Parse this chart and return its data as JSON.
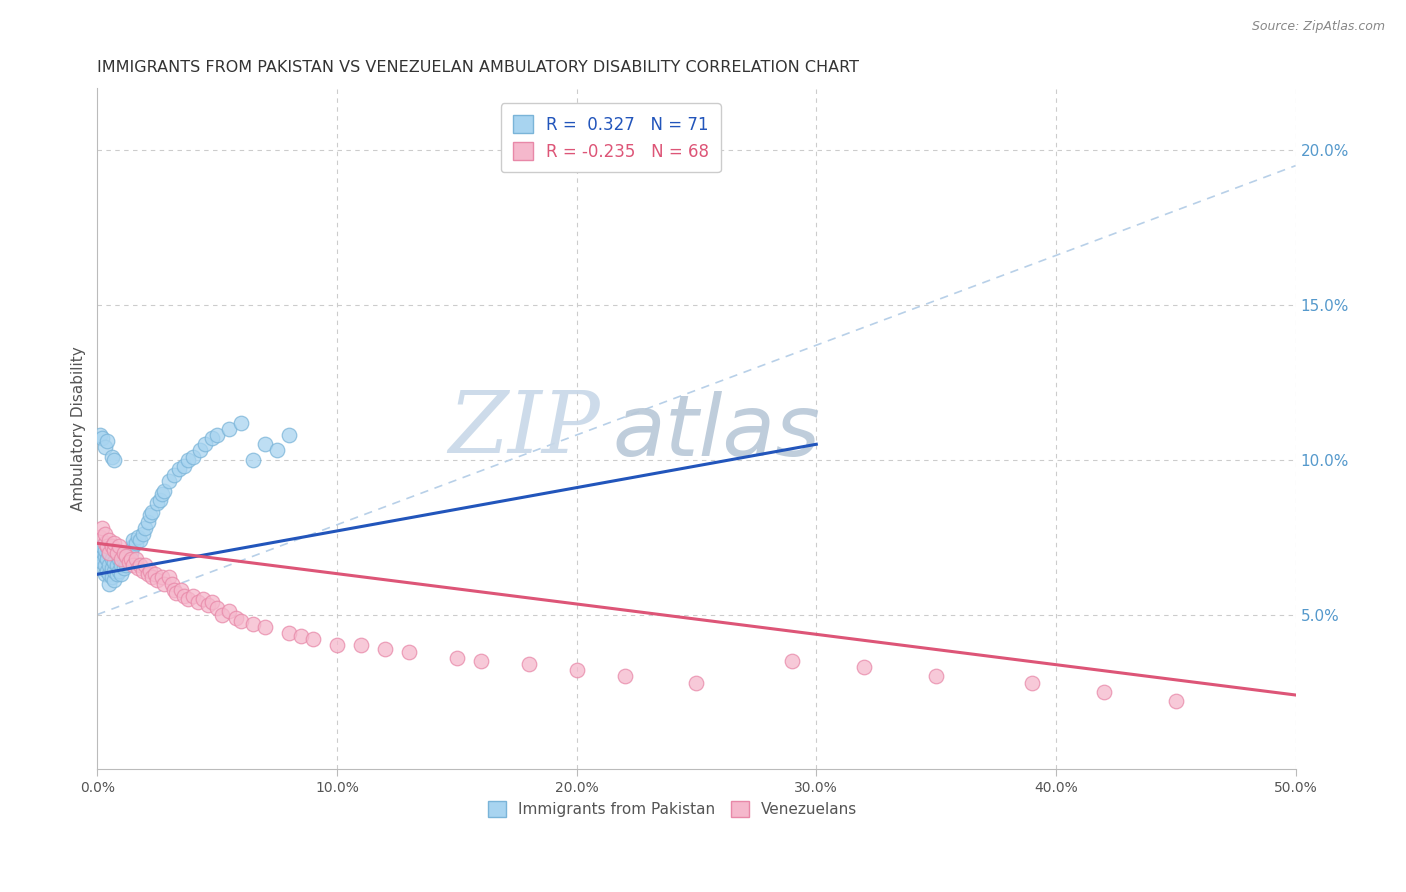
{
  "title": "IMMIGRANTS FROM PAKISTAN VS VENEZUELAN AMBULATORY DISABILITY CORRELATION CHART",
  "source": "Source: ZipAtlas.com",
  "ylabel": "Ambulatory Disability",
  "xlim": [
    0.0,
    0.5
  ],
  "ylim": [
    0.0,
    0.22
  ],
  "xticks": [
    0.0,
    0.1,
    0.2,
    0.3,
    0.4,
    0.5
  ],
  "xtick_labels": [
    "0.0%",
    "10.0%",
    "20.0%",
    "30.0%",
    "40.0%",
    "50.0%"
  ],
  "yticks_right": [
    0.0,
    0.05,
    0.1,
    0.15,
    0.2
  ],
  "ytick_labels_right": [
    "",
    "5.0%",
    "10.0%",
    "15.0%",
    "20.0%"
  ],
  "blue_scatter_x": [
    0.001,
    0.001,
    0.002,
    0.002,
    0.002,
    0.003,
    0.003,
    0.003,
    0.003,
    0.004,
    0.004,
    0.004,
    0.005,
    0.005,
    0.005,
    0.005,
    0.006,
    0.006,
    0.006,
    0.007,
    0.007,
    0.007,
    0.008,
    0.008,
    0.009,
    0.009,
    0.01,
    0.01,
    0.01,
    0.011,
    0.011,
    0.012,
    0.012,
    0.013,
    0.014,
    0.015,
    0.015,
    0.016,
    0.017,
    0.018,
    0.019,
    0.02,
    0.021,
    0.022,
    0.023,
    0.025,
    0.026,
    0.027,
    0.028,
    0.03,
    0.032,
    0.034,
    0.036,
    0.038,
    0.04,
    0.043,
    0.045,
    0.048,
    0.05,
    0.055,
    0.06,
    0.065,
    0.07,
    0.075,
    0.08,
    0.001,
    0.002,
    0.003,
    0.004,
    0.006,
    0.007
  ],
  "blue_scatter_y": [
    0.068,
    0.07,
    0.065,
    0.067,
    0.072,
    0.063,
    0.066,
    0.069,
    0.071,
    0.064,
    0.068,
    0.072,
    0.06,
    0.063,
    0.066,
    0.07,
    0.062,
    0.065,
    0.068,
    0.061,
    0.064,
    0.067,
    0.063,
    0.066,
    0.064,
    0.068,
    0.063,
    0.066,
    0.07,
    0.065,
    0.068,
    0.066,
    0.07,
    0.068,
    0.07,
    0.072,
    0.074,
    0.073,
    0.075,
    0.074,
    0.076,
    0.078,
    0.08,
    0.082,
    0.083,
    0.086,
    0.087,
    0.089,
    0.09,
    0.093,
    0.095,
    0.097,
    0.098,
    0.1,
    0.101,
    0.103,
    0.105,
    0.107,
    0.108,
    0.11,
    0.112,
    0.1,
    0.105,
    0.103,
    0.108,
    0.108,
    0.107,
    0.104,
    0.106,
    0.101,
    0.1
  ],
  "pink_scatter_x": [
    0.001,
    0.002,
    0.003,
    0.003,
    0.004,
    0.005,
    0.005,
    0.006,
    0.007,
    0.007,
    0.008,
    0.009,
    0.01,
    0.011,
    0.012,
    0.013,
    0.014,
    0.015,
    0.016,
    0.017,
    0.018,
    0.019,
    0.02,
    0.021,
    0.022,
    0.023,
    0.024,
    0.025,
    0.027,
    0.028,
    0.03,
    0.031,
    0.032,
    0.033,
    0.035,
    0.036,
    0.038,
    0.04,
    0.042,
    0.044,
    0.046,
    0.048,
    0.05,
    0.052,
    0.055,
    0.058,
    0.06,
    0.065,
    0.07,
    0.08,
    0.085,
    0.09,
    0.1,
    0.11,
    0.12,
    0.13,
    0.15,
    0.16,
    0.18,
    0.2,
    0.22,
    0.25,
    0.29,
    0.32,
    0.35,
    0.39,
    0.42,
    0.45
  ],
  "pink_scatter_y": [
    0.075,
    0.078,
    0.073,
    0.076,
    0.072,
    0.074,
    0.07,
    0.072,
    0.071,
    0.073,
    0.07,
    0.072,
    0.068,
    0.07,
    0.069,
    0.067,
    0.068,
    0.066,
    0.068,
    0.065,
    0.066,
    0.064,
    0.066,
    0.063,
    0.064,
    0.062,
    0.063,
    0.061,
    0.062,
    0.06,
    0.062,
    0.06,
    0.058,
    0.057,
    0.058,
    0.056,
    0.055,
    0.056,
    0.054,
    0.055,
    0.053,
    0.054,
    0.052,
    0.05,
    0.051,
    0.049,
    0.048,
    0.047,
    0.046,
    0.044,
    0.043,
    0.042,
    0.04,
    0.04,
    0.039,
    0.038,
    0.036,
    0.035,
    0.034,
    0.032,
    0.03,
    0.028,
    0.035,
    0.033,
    0.03,
    0.028,
    0.025,
    0.022
  ],
  "blue_line_x": [
    0.0,
    0.3
  ],
  "blue_line_y": [
    0.063,
    0.105
  ],
  "blue_dash_line_x": [
    0.0,
    0.5
  ],
  "blue_dash_line_y": [
    0.05,
    0.195
  ],
  "pink_line_x": [
    0.0,
    0.5
  ],
  "pink_line_y": [
    0.073,
    0.024
  ],
  "blue_color": "#a8d4f0",
  "blue_edge_color": "#7ab4d8",
  "pink_color": "#f5b8cc",
  "pink_edge_color": "#e888a8",
  "blue_line_color": "#2255bb",
  "pink_line_color": "#dd5577",
  "dash_line_color": "#b8d0e8",
  "grid_color": "#cccccc",
  "title_color": "#333333",
  "right_axis_color": "#5599cc",
  "watermark_zip_color": "#c8d8e8",
  "watermark_atlas_color": "#b8c8d8",
  "background_color": "#ffffff"
}
